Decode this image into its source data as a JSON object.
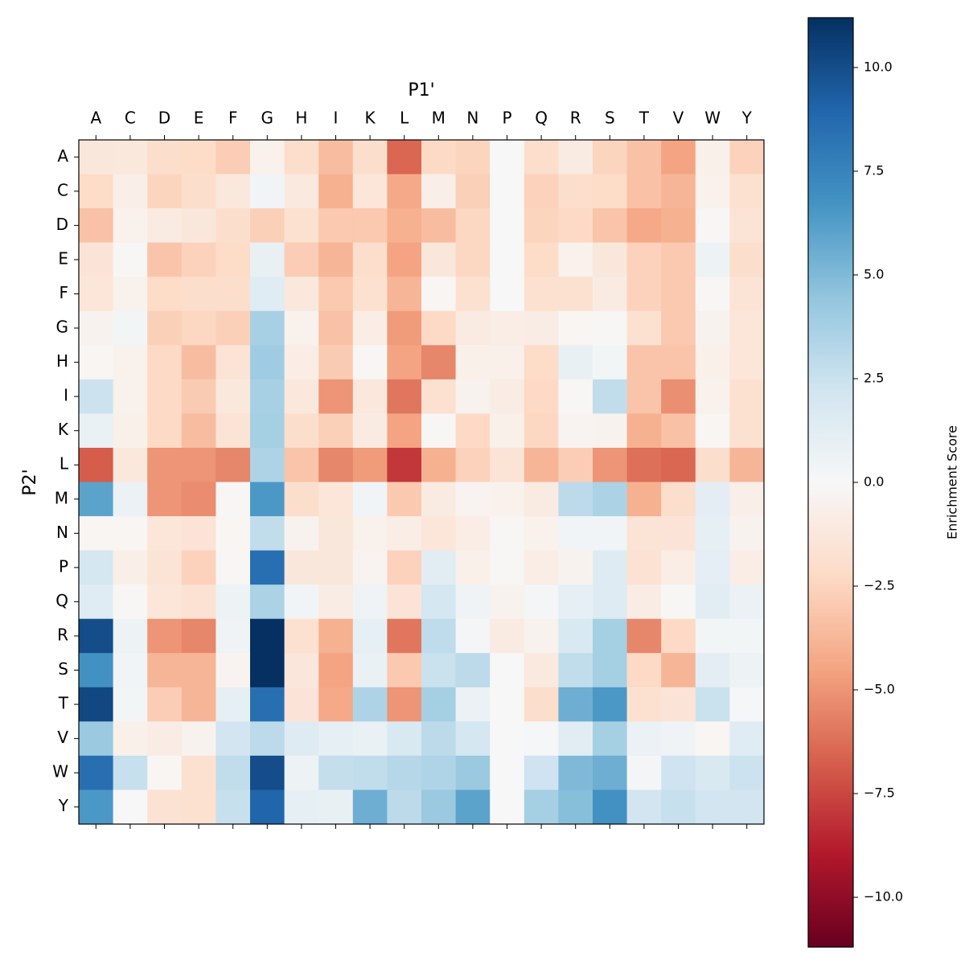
{
  "chart_data": {
    "type": "heatmap",
    "x_label": "P1'",
    "y_label": "P2'",
    "colorbar_label": "Enrichment Score",
    "x_categories": [
      "A",
      "C",
      "D",
      "E",
      "F",
      "G",
      "H",
      "I",
      "K",
      "L",
      "M",
      "N",
      "P",
      "Q",
      "R",
      "S",
      "T",
      "V",
      "W",
      "Y"
    ],
    "y_categories": [
      "A",
      "C",
      "D",
      "E",
      "F",
      "G",
      "H",
      "I",
      "K",
      "L",
      "M",
      "N",
      "P",
      "Q",
      "R",
      "S",
      "T",
      "V",
      "W",
      "Y"
    ],
    "values": [
      [
        -1.3,
        -1.2,
        -2,
        -2.2,
        -2.8,
        -0.5,
        -2,
        -3.5,
        -2,
        -6.5,
        -2.3,
        -2.5,
        0,
        -2,
        -1,
        -2.5,
        -3.3,
        -4.5,
        -0.6,
        -2.6
      ],
      [
        -2.2,
        -0.7,
        -2.5,
        -2,
        -1.2,
        0.4,
        -1.1,
        -4,
        -1.4,
        -4.3,
        -0.7,
        -2.7,
        0,
        -2.6,
        -2,
        -2.2,
        -3.3,
        -3.8,
        -0.5,
        -1.8
      ],
      [
        -3.3,
        -0.5,
        -1,
        -1.3,
        -2,
        -2.7,
        -1.8,
        -3,
        -3,
        -4,
        -3.5,
        -2.4,
        0,
        -2.5,
        -2.3,
        -3.2,
        -4.3,
        -4,
        -0.1,
        -1.6
      ],
      [
        -1.5,
        -0.1,
        -3.2,
        -2.6,
        -2.2,
        0.9,
        -2.8,
        -3.8,
        -2,
        -4.5,
        -1.3,
        -2.4,
        0,
        -2.2,
        -0.5,
        -1.3,
        -2.6,
        -3,
        0.6,
        -2
      ],
      [
        -1.4,
        -0.5,
        -2.2,
        -2,
        -2,
        1.4,
        -1.2,
        -3,
        -1.8,
        -3.8,
        -0.2,
        -1.8,
        0,
        -1.8,
        -1.8,
        -1,
        -2.6,
        -3,
        -0.1,
        -1.6
      ],
      [
        -0.4,
        0.3,
        -2.7,
        -2.4,
        -2.7,
        3.7,
        -0.5,
        -3.3,
        -0.8,
        -4.8,
        -2.3,
        -1,
        -0.8,
        -0.9,
        -0.2,
        -0.1,
        -1.8,
        -3,
        -0.4,
        -1.4
      ],
      [
        -0.2,
        -0.5,
        -2.3,
        -3.5,
        -1.6,
        4,
        -0.8,
        -2.9,
        -0.1,
        -4.5,
        -5.5,
        -0.6,
        -0.6,
        -2.2,
        0.9,
        0.3,
        -3.2,
        -3.2,
        -0.6,
        -1.4
      ],
      [
        2.4,
        -0.5,
        -2.3,
        -2.9,
        -1.2,
        3.7,
        -1.2,
        -5,
        -1.2,
        -6,
        -1.8,
        -0.4,
        -0.9,
        -2.3,
        -0.1,
        2.8,
        -3.2,
        -5.2,
        -0.5,
        -1.8
      ],
      [
        0.8,
        -0.6,
        -2.3,
        -3.5,
        -1.6,
        3.8,
        -2,
        -2.7,
        -1,
        -4.5,
        -0.1,
        -2.3,
        -0.6,
        -2.4,
        -0.3,
        -0.4,
        -4,
        -3.3,
        -0.2,
        -1.8
      ],
      [
        -6.8,
        -1.2,
        -5,
        -5,
        -5.5,
        3.5,
        -3.2,
        -5.5,
        -4.8,
        -8,
        -4,
        -2.6,
        -1.6,
        -3.8,
        -2.8,
        -5,
        -6.2,
        -6.5,
        -2,
        -3.8
      ],
      [
        6,
        0.7,
        -5,
        -5.3,
        -0.1,
        6.5,
        -2,
        -1.4,
        0.4,
        -3,
        -1,
        -0.3,
        -0.5,
        -1,
        3,
        3.6,
        -4,
        -2,
        1.2,
        -0.7
      ],
      [
        -0.2,
        -0.2,
        -1.4,
        -1.5,
        -0.2,
        2.8,
        -0.4,
        -1.3,
        -0.5,
        -0.8,
        -1.4,
        -0.8,
        -0.1,
        -0.5,
        0.4,
        0.4,
        -1.6,
        -1.5,
        1,
        -0.4
      ],
      [
        2,
        -0.7,
        -1.6,
        -2.6,
        -0.1,
        8.5,
        -1.3,
        -1.3,
        -0.3,
        -2.6,
        1.3,
        -0.6,
        -0.1,
        -0.8,
        -0.4,
        1.5,
        -1.7,
        -0.8,
        1.1,
        -0.8
      ],
      [
        1.4,
        -0.1,
        -1.4,
        -1.7,
        0.6,
        3.6,
        0.4,
        -0.9,
        0.5,
        -1.5,
        2,
        0.5,
        -0.4,
        0.2,
        1,
        1.5,
        -0.9,
        -0.1,
        1.3,
        0.7
      ],
      [
        10,
        0.6,
        -5,
        -5.5,
        0.5,
        11.2,
        -1.8,
        -4,
        1,
        -6,
        2.9,
        0.2,
        -1,
        -0.4,
        1.8,
        3.8,
        -5.5,
        -2.3,
        0.3,
        0.3
      ],
      [
        6.8,
        0.4,
        -3.8,
        -3.8,
        -0.3,
        11.2,
        -1.3,
        -4.5,
        0.8,
        -3,
        2.5,
        3,
        0,
        -1.1,
        2.8,
        3.8,
        -2.3,
        -3.8,
        1.2,
        0.6
      ],
      [
        10.2,
        0.3,
        -2.8,
        -3.8,
        1,
        8.5,
        -1.5,
        -4.3,
        3.5,
        -5,
        3.8,
        0.7,
        0,
        -2,
        5.5,
        6.5,
        -1.8,
        -1.5,
        2.5,
        0.1
      ],
      [
        4.2,
        -0.6,
        -0.9,
        -0.4,
        2.2,
        3,
        1.5,
        1,
        0.8,
        1.8,
        3,
        2,
        0,
        0.1,
        1.3,
        3.8,
        0.7,
        0.5,
        -0.2,
        1.4
      ],
      [
        8.5,
        2.6,
        -0.2,
        -1.8,
        2.8,
        10,
        0.6,
        2.7,
        2.8,
        3.2,
        3.4,
        4.2,
        0,
        2.3,
        5,
        5.5,
        0.2,
        2.3,
        1.8,
        2.4
      ],
      [
        6.5,
        0,
        -1.7,
        -1.8,
        2.6,
        9,
        1,
        0.9,
        5.5,
        3,
        4.2,
        6,
        0,
        3.8,
        4.8,
        6.8,
        2.2,
        2.6,
        2.2,
        2.2
      ]
    ],
    "clim": [
      -11.2,
      11.2
    ],
    "colormap": [
      "#67001f",
      "#b2182b",
      "#d6604d",
      "#f4a582",
      "#fddbc7",
      "#f7f7f7",
      "#d1e5f0",
      "#92c5de",
      "#4393c3",
      "#2166ac",
      "#053061"
    ],
    "cticks": [
      {
        "value": -10,
        "label": "−10.0"
      },
      {
        "value": -7.5,
        "label": "−7.5"
      },
      {
        "value": -5,
        "label": "−5.0"
      },
      {
        "value": -2.5,
        "label": "−2.5"
      },
      {
        "value": 0,
        "label": "0.0"
      },
      {
        "value": 2.5,
        "label": "2.5"
      },
      {
        "value": 5,
        "label": "5.0"
      },
      {
        "value": 7.5,
        "label": "7.5"
      },
      {
        "value": 10,
        "label": "10.0"
      }
    ]
  }
}
